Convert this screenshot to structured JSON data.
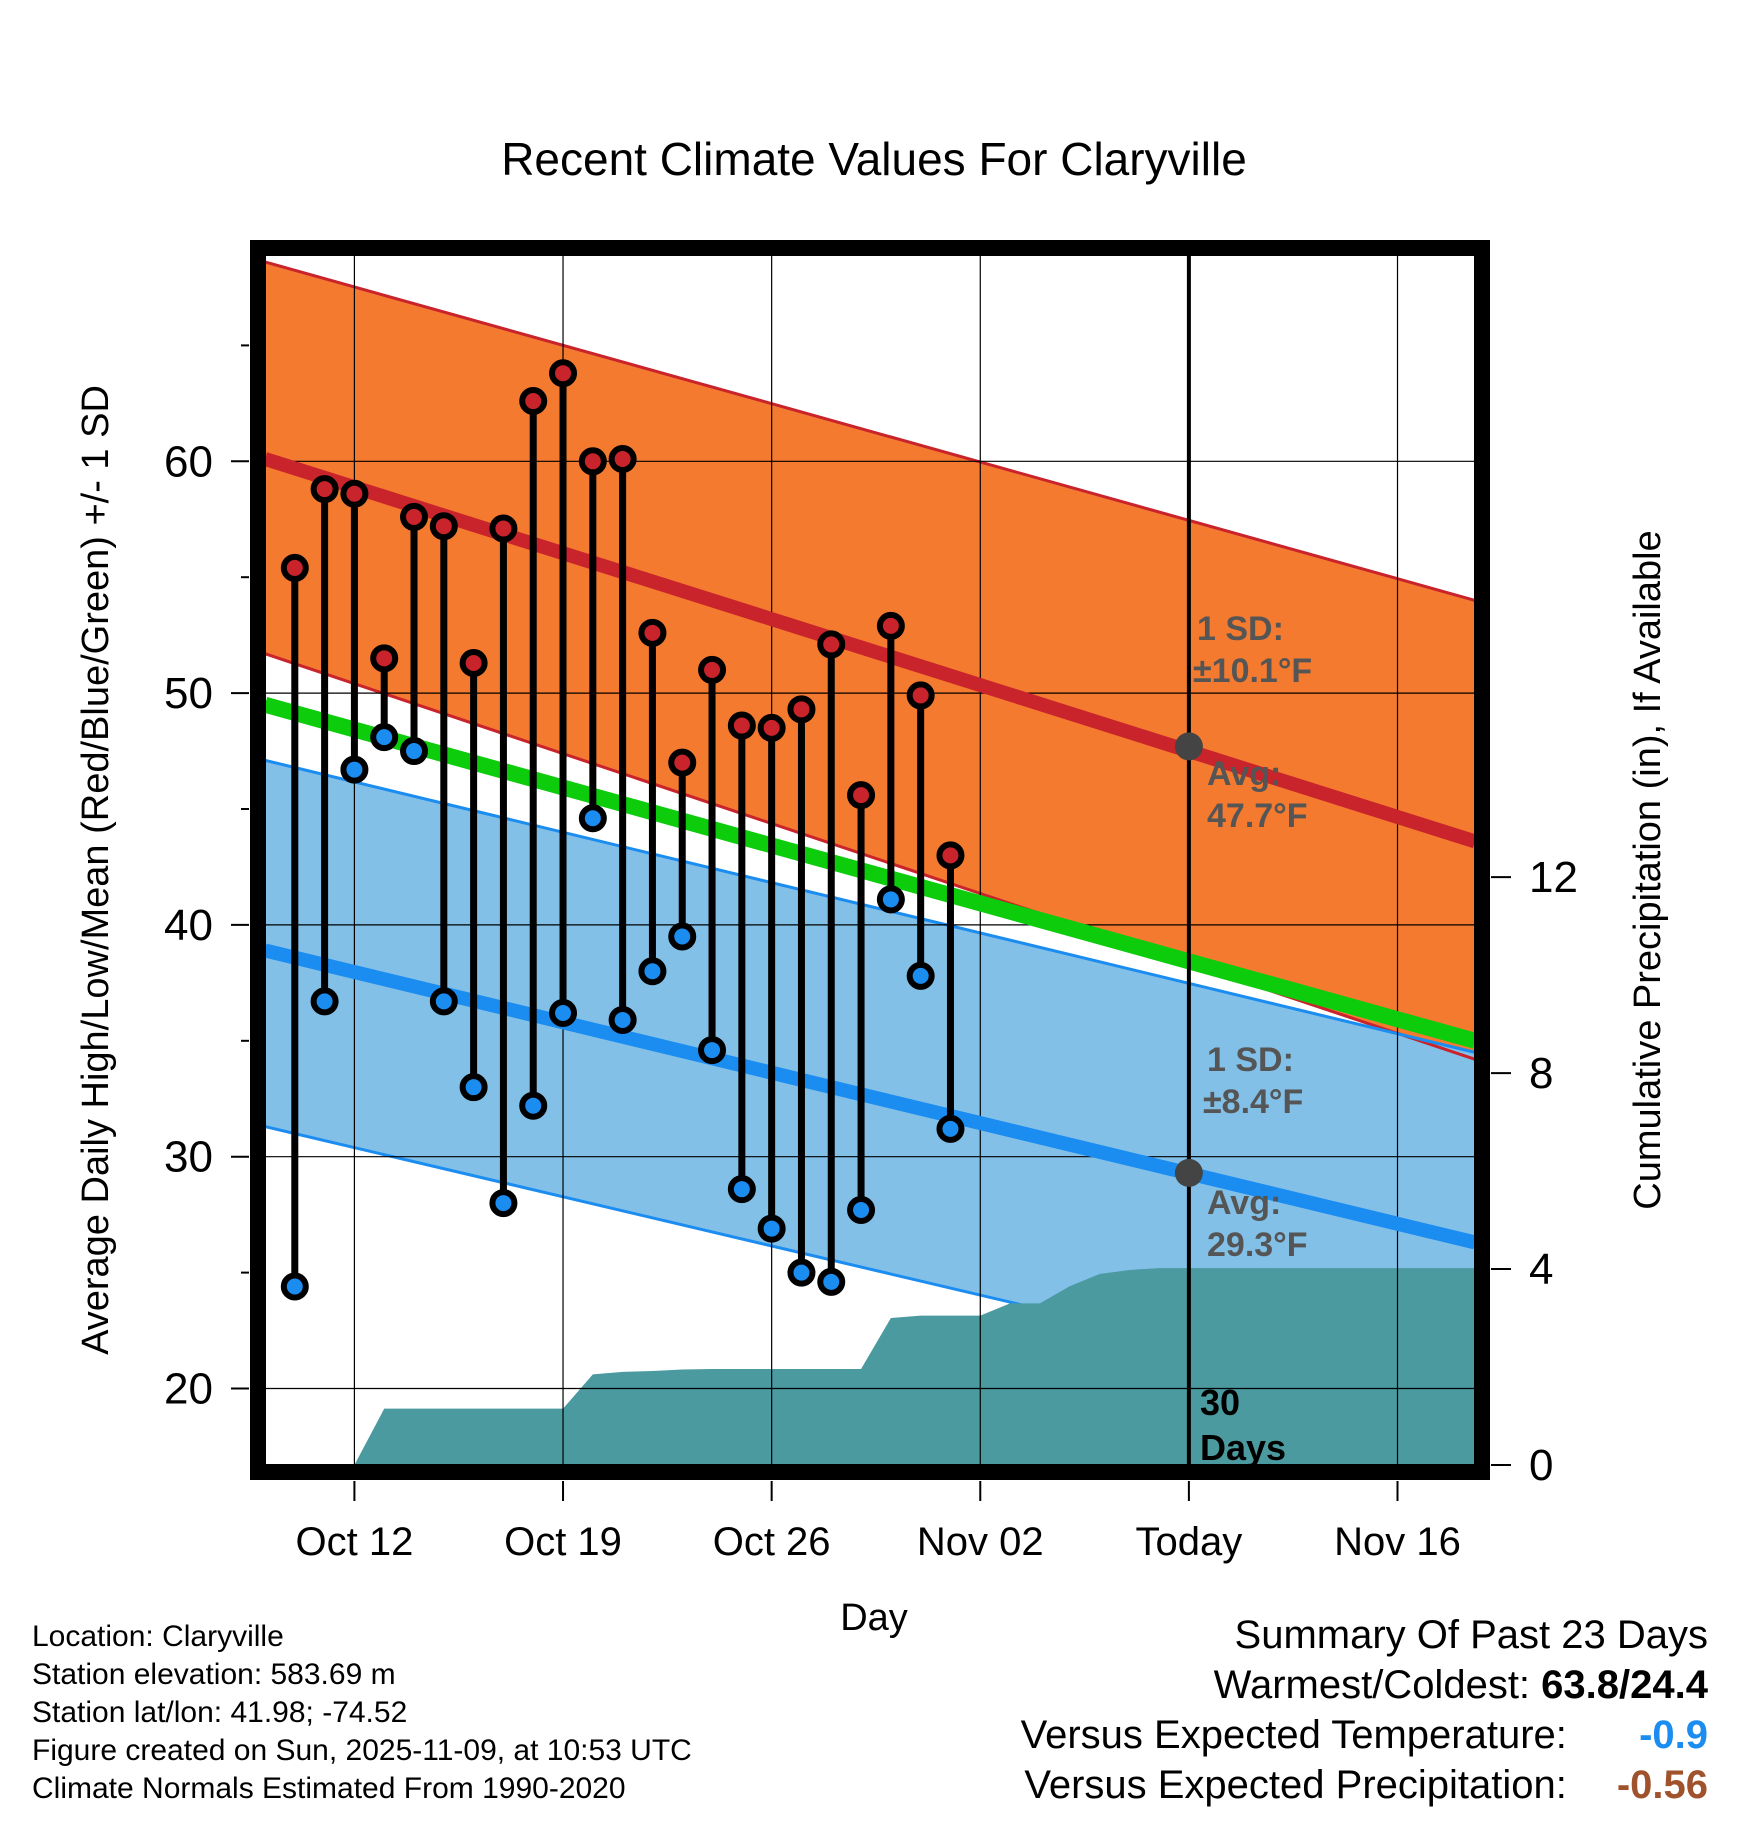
{
  "chart_data": {
    "type": "line",
    "title": "Recent Climate Values For Claryville",
    "xlabel": "Day",
    "ylabel": "Average Daily High/Low/Mean (Red/Blue/Green) +/- 1 SD",
    "y2label": "Cumulative Precipitation (in), If Available",
    "x_ticks": [
      "Oct 12",
      "Oct 19",
      "Oct 26",
      "Nov 02",
      "Today",
      "Nov 16"
    ],
    "x_tick_days": [
      3,
      10,
      17,
      24,
      31,
      38
    ],
    "y_ticks": [
      20,
      30,
      40,
      50,
      60
    ],
    "y2_ticks": [
      0,
      4,
      8,
      12
    ],
    "xlim": [
      0,
      40.6
    ],
    "ylim": [
      16.7,
      68.9
    ],
    "y2lim": [
      0,
      24.7
    ],
    "today_day": 31,
    "normals": {
      "high_mean": {
        "start": 60.1,
        "end": 43.6
      },
      "high_plus_sd": {
        "start": 68.6,
        "end": 54.0
      },
      "high_minus_sd": {
        "start": 51.7,
        "end": 34.2
      },
      "low_mean": {
        "start": 38.9,
        "end": 26.3
      },
      "low_plus_sd": {
        "start": 47.1,
        "end": 34.5
      },
      "low_minus_sd": {
        "start": 31.3,
        "end": 19.0
      },
      "mean_mean": {
        "start": 49.5,
        "end": 35.0
      }
    },
    "observed": {
      "days": [
        1,
        2,
        3,
        4,
        5,
        6,
        7,
        8,
        9,
        10,
        11,
        12,
        13,
        14,
        15,
        16,
        17,
        18,
        19,
        20,
        21,
        22,
        23
      ],
      "highs": [
        55.4,
        58.8,
        58.6,
        51.5,
        57.6,
        57.2,
        51.3,
        57.1,
        62.6,
        63.8,
        60.0,
        60.1,
        52.6,
        47.0,
        51.0,
        48.6,
        48.5,
        49.3,
        52.1,
        45.6,
        52.9,
        49.9,
        43.0
      ],
      "lows": [
        24.4,
        36.7,
        46.7,
        48.1,
        47.5,
        36.7,
        33.0,
        28.0,
        32.2,
        36.2,
        44.6,
        35.9,
        38.0,
        39.5,
        34.6,
        28.6,
        26.9,
        25.0,
        24.6,
        27.7,
        41.1,
        37.8,
        31.2
      ]
    },
    "precipitation": {
      "days": [
        3,
        4,
        10,
        11,
        12,
        13,
        14,
        15,
        16,
        17,
        18,
        19,
        20,
        21,
        22,
        23,
        24,
        25,
        26,
        27,
        28,
        29,
        30,
        31,
        40.6
      ],
      "cumulative": [
        0.0,
        1.15,
        1.15,
        1.85,
        1.9,
        1.92,
        1.95,
        1.96,
        1.96,
        1.96,
        1.96,
        1.96,
        1.96,
        3.0,
        3.05,
        3.05,
        3.05,
        3.3,
        3.3,
        3.65,
        3.9,
        3.98,
        4.02,
        4.02,
        4.02
      ]
    },
    "annotations": {
      "high_sd_label": "1 SD:",
      "high_sd_value": "±10.1°F",
      "high_avg_label": "Avg:",
      "high_avg_value": "47.7°F",
      "high_avg": 47.7,
      "low_sd_label": "1 SD:",
      "low_sd_value": "±8.4°F",
      "low_avg_label": "Avg:",
      "low_avg_value": "29.3°F",
      "low_avg": 29.3,
      "days_label_1": "30",
      "days_label_2": "Days"
    },
    "colors": {
      "high_band": "#f47a30",
      "high_line": "#c9232b",
      "low_band": "#82c0e8",
      "low_line": "#1b8cf0",
      "mean_line": "#0ccc0c",
      "precip": "#4a9aa0",
      "marker_high": "#c9232b",
      "marker_low": "#1b8cf0",
      "annotation": "#555555"
    }
  },
  "info": {
    "location": "Location: Claryville",
    "elevation": "Station elevation: 583.69 m",
    "latlon": "Station lat/lon: 41.98; -74.52",
    "created": "Figure created on Sun, 2025-11-09, at 10:53 UTC",
    "normals": "Climate Normals Estimated From 1990-2020"
  },
  "summary": {
    "title": "Summary Of Past 23 Days",
    "warm_cold_label": "Warmest/Coldest:",
    "warm_cold_value": "63.8/24.4",
    "temp_label": "Versus Expected Temperature:",
    "temp_value": "-0.9",
    "temp_color": "#1b8cf0",
    "precip_label": "Versus Expected Precipitation:",
    "precip_value": "-0.56",
    "precip_color": "#a0522d"
  }
}
